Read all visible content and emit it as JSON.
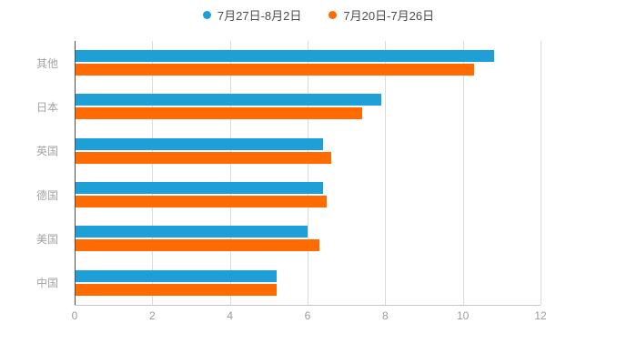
{
  "chart_data": {
    "type": "bar",
    "orientation": "horizontal",
    "title": "",
    "xlabel": "",
    "ylabel": "",
    "categories": [
      "其他",
      "日本",
      "英国",
      "德国",
      "美国",
      "中国"
    ],
    "series": [
      {
        "name": "7月27日-8月2日",
        "color": "#1E9FD8",
        "values": [
          10.8,
          7.9,
          6.4,
          6.4,
          6.0,
          5.2
        ]
      },
      {
        "name": "7月20日-7月26日",
        "color": "#FF6B00",
        "values": [
          10.3,
          7.4,
          6.6,
          6.5,
          6.3,
          5.2
        ]
      }
    ],
    "xlim": [
      0,
      12
    ],
    "xticks": [
      0,
      2,
      4,
      6,
      8,
      10,
      12
    ],
    "legend_position": "top",
    "grid": "vertical",
    "colors": {
      "gridline": "#dcdcdc",
      "axis_line": "#4d4d4d",
      "tick_label": "#9b9b9b",
      "category_label": "#a3a3a3",
      "legend_text": "#4d4d4d",
      "background": "#ffffff"
    }
  }
}
